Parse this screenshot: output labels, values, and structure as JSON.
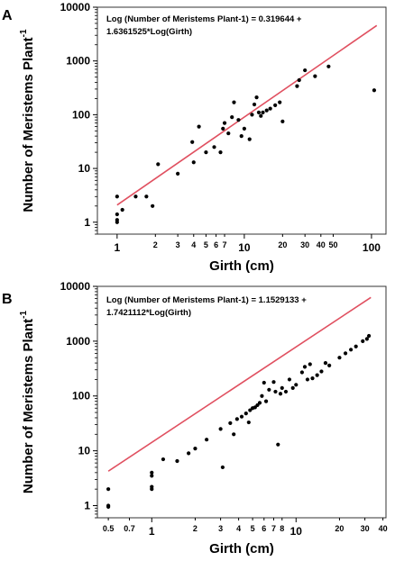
{
  "chart_data": [
    {
      "panel": "A",
      "type": "scatter",
      "xscale": "log",
      "yscale": "log",
      "xlim": [
        0.7,
        130
      ],
      "ylim": [
        0.6,
        10000
      ],
      "xlabel": "Girth (cm)",
      "ylabel": "Number of Meristems Plant",
      "ylabel_sup": "-1",
      "equation_lines": [
        "Log (Number of Meristems Plant-1) = 0.319644 +",
        "1.6361525*Log(Girth)"
      ],
      "fit": {
        "intercept": 0.319644,
        "slope": 1.6361525,
        "x_range": [
          1.0,
          110
        ],
        "color": "#e05060"
      },
      "yticks": [
        {
          "v": 1,
          "label": "1"
        },
        {
          "v": 10,
          "label": "10"
        },
        {
          "v": 100,
          "label": "100"
        },
        {
          "v": 1000,
          "label": "1000"
        },
        {
          "v": 10000,
          "label": "10000"
        }
      ],
      "xticks": [
        {
          "v": 1,
          "label": "1",
          "major": true
        },
        {
          "v": 2,
          "label": "2",
          "major": false
        },
        {
          "v": 3,
          "label": "3",
          "major": false
        },
        {
          "v": 4,
          "label": "4",
          "major": false
        },
        {
          "v": 5,
          "label": "5",
          "major": false
        },
        {
          "v": 6,
          "label": "6",
          "major": false
        },
        {
          "v": 7,
          "label": "7",
          "major": false
        },
        {
          "v": 10,
          "label": "10",
          "major": true
        },
        {
          "v": 20,
          "label": "20",
          "major": false
        },
        {
          "v": 30,
          "label": "30",
          "major": false
        },
        {
          "v": 40,
          "label": "40",
          "major": false
        },
        {
          "v": 50,
          "label": "50",
          "major": false
        },
        {
          "v": 100,
          "label": "100",
          "major": true
        }
      ],
      "points": [
        [
          1.0,
          1.0
        ],
        [
          1.0,
          1.1
        ],
        [
          1.0,
          1.4
        ],
        [
          1.0,
          3.0
        ],
        [
          1.1,
          1.7
        ],
        [
          1.4,
          3.0
        ],
        [
          1.7,
          3.0
        ],
        [
          1.9,
          2.0
        ],
        [
          2.1,
          12
        ],
        [
          3.0,
          8
        ],
        [
          3.9,
          31
        ],
        [
          4.0,
          13
        ],
        [
          4.4,
          60
        ],
        [
          5.0,
          20
        ],
        [
          5.8,
          25
        ],
        [
          6.5,
          20
        ],
        [
          6.8,
          55
        ],
        [
          7.0,
          70
        ],
        [
          7.5,
          45
        ],
        [
          8.0,
          90
        ],
        [
          8.3,
          170
        ],
        [
          9.0,
          80
        ],
        [
          9.5,
          40
        ],
        [
          10.0,
          55
        ],
        [
          11.0,
          35
        ],
        [
          11.5,
          100
        ],
        [
          12.0,
          155
        ],
        [
          12.5,
          210
        ],
        [
          13.0,
          110
        ],
        [
          13.5,
          95
        ],
        [
          14.0,
          110
        ],
        [
          15.0,
          120
        ],
        [
          16.0,
          130
        ],
        [
          17.5,
          150
        ],
        [
          19.0,
          170
        ],
        [
          20.0,
          75
        ],
        [
          26.0,
          340
        ],
        [
          27.0,
          440
        ],
        [
          30.0,
          670
        ],
        [
          36.0,
          520
        ],
        [
          46.0,
          790
        ],
        [
          105.0,
          285
        ]
      ]
    },
    {
      "panel": "B",
      "type": "scatter",
      "xscale": "log",
      "yscale": "log",
      "xlim": [
        0.42,
        42
      ],
      "ylim": [
        0.6,
        10000
      ],
      "xlabel": "Girth (cm)",
      "ylabel": "Number of Meristems Plant",
      "ylabel_sup": "-1",
      "equation_lines": [
        "Log (Number of Meristems Plant-1) = 1.1529133 +",
        "1.7421112*Log(Girth)"
      ],
      "fit": {
        "intercept": 1.1529133,
        "slope": 1.7421112,
        "x_range": [
          0.5,
          33
        ],
        "color": "#e05060"
      },
      "yticks": [
        {
          "v": 1,
          "label": "1"
        },
        {
          "v": 10,
          "label": "10"
        },
        {
          "v": 100,
          "label": "100"
        },
        {
          "v": 1000,
          "label": "1000"
        },
        {
          "v": 10000,
          "label": "10000"
        }
      ],
      "xticks": [
        {
          "v": 0.5,
          "label": "0.5",
          "major": false
        },
        {
          "v": 0.7,
          "label": "0.7",
          "major": false
        },
        {
          "v": 1,
          "label": "1",
          "major": true
        },
        {
          "v": 2,
          "label": "2",
          "major": false
        },
        {
          "v": 3,
          "label": "3",
          "major": false
        },
        {
          "v": 4,
          "label": "4",
          "major": false
        },
        {
          "v": 5,
          "label": "5",
          "major": false
        },
        {
          "v": 6,
          "label": "6",
          "major": false
        },
        {
          "v": 7,
          "label": "7",
          "major": false
        },
        {
          "v": 8,
          "label": "8",
          "major": false
        },
        {
          "v": 10,
          "label": "10",
          "major": true
        },
        {
          "v": 20,
          "label": "20",
          "major": false
        },
        {
          "v": 30,
          "label": "30",
          "major": false
        },
        {
          "v": 40,
          "label": "40",
          "major": false
        }
      ],
      "points": [
        [
          0.5,
          0.95
        ],
        [
          0.5,
          1.0
        ],
        [
          0.5,
          2.0
        ],
        [
          1.0,
          2.0
        ],
        [
          1.0,
          2.2
        ],
        [
          1.0,
          3.5
        ],
        [
          1.0,
          4.0
        ],
        [
          1.2,
          7.0
        ],
        [
          1.5,
          6.5
        ],
        [
          1.8,
          9.0
        ],
        [
          2.0,
          11
        ],
        [
          2.4,
          16
        ],
        [
          3.0,
          25
        ],
        [
          3.1,
          5.0
        ],
        [
          3.5,
          32
        ],
        [
          3.7,
          20
        ],
        [
          3.9,
          38
        ],
        [
          4.2,
          42
        ],
        [
          4.5,
          48
        ],
        [
          4.7,
          33
        ],
        [
          4.8,
          55
        ],
        [
          5.0,
          60
        ],
        [
          5.2,
          62
        ],
        [
          5.4,
          68
        ],
        [
          5.6,
          75
        ],
        [
          5.8,
          100
        ],
        [
          6.0,
          175
        ],
        [
          6.2,
          80
        ],
        [
          6.5,
          130
        ],
        [
          7.0,
          180
        ],
        [
          7.2,
          120
        ],
        [
          7.5,
          13
        ],
        [
          7.8,
          110
        ],
        [
          8.0,
          140
        ],
        [
          8.5,
          120
        ],
        [
          9.0,
          200
        ],
        [
          9.5,
          140
        ],
        [
          10.0,
          160
        ],
        [
          11.0,
          270
        ],
        [
          11.5,
          340
        ],
        [
          12.0,
          200
        ],
        [
          12.5,
          380
        ],
        [
          13.0,
          210
        ],
        [
          14.0,
          240
        ],
        [
          15.0,
          280
        ],
        [
          16.0,
          400
        ],
        [
          17.0,
          360
        ],
        [
          20.0,
          500
        ],
        [
          22.0,
          600
        ],
        [
          24.0,
          700
        ],
        [
          26.0,
          800
        ],
        [
          29.0,
          1000
        ],
        [
          31.0,
          1100
        ],
        [
          32.0,
          1250
        ]
      ]
    }
  ]
}
